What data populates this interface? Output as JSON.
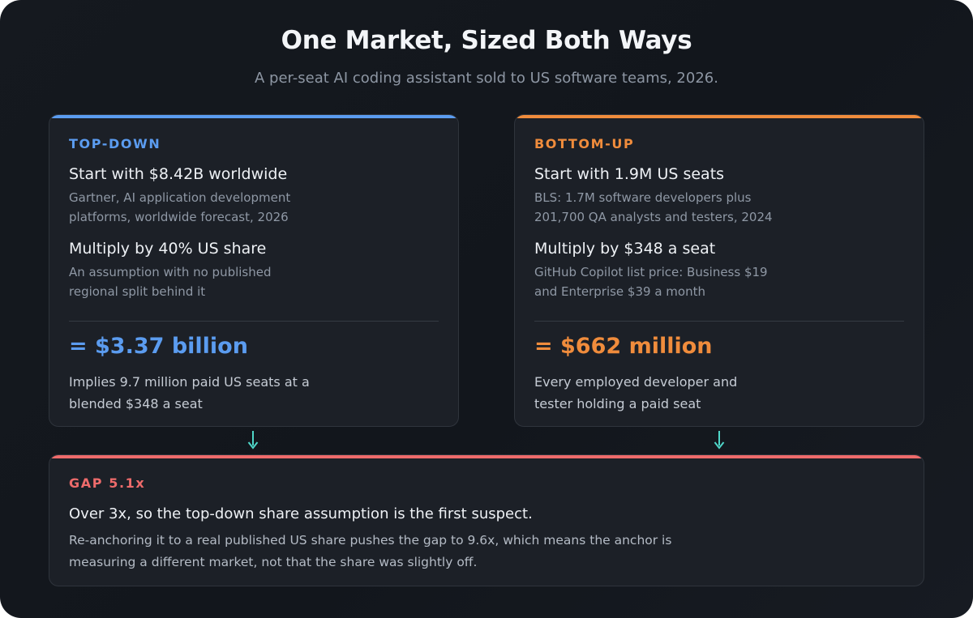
{
  "title": "One Market, Sized Both Ways",
  "subtitle": "A per-seat AI coding assistant sold to US software teams, 2026.",
  "colors": {
    "top_down": "#5b9cf0",
    "bottom_up": "#f08c3c",
    "gap": "#ee6b6b",
    "arrow": "#4fd6c8"
  },
  "top_down": {
    "label": "TOP-DOWN",
    "step1_head": "Start with $8.42B worldwide",
    "step1_note": "Gartner, AI application development platforms, worldwide forecast, 2026",
    "step2_head": "Multiply by 40% US share",
    "step2_note": "An assumption with no published regional split behind it",
    "result": "= $3.37 billion",
    "implication": "Implies 9.7 million paid US seats at a blended $348 a seat"
  },
  "bottom_up": {
    "label": "BOTTOM-UP",
    "step1_head": "Start with 1.9M US seats",
    "step1_note": "BLS: 1.7M software developers plus 201,700 QA analysts and testers, 2024",
    "step2_head": "Multiply by $348 a seat",
    "step2_note": "GitHub Copilot list price: Business $19 and Enterprise $39 a month",
    "result": "= $662 million",
    "implication": "Every employed developer and tester holding a paid seat"
  },
  "gap": {
    "label": "GAP 5.1x",
    "headline": "Over 3x, so the top-down share assumption is the first suspect.",
    "body": "Re-anchoring it to a real published US share pushes the gap to 9.6x, which means the anchor is measuring a different market, not that the share was slightly off."
  },
  "icons": {
    "left_arrow": "arrow-down-icon",
    "right_arrow": "arrow-down-icon"
  }
}
